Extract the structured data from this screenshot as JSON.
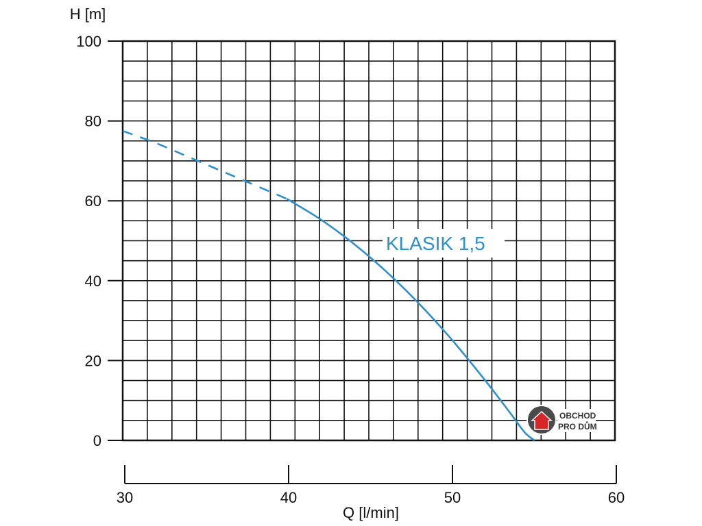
{
  "chart_data": {
    "type": "line",
    "ylabel": "H [m]",
    "xlabel": "Q [l/min]",
    "ylim": [
      0,
      100
    ],
    "xlim": [
      30,
      60
    ],
    "y_ticks": [
      "100",
      "80",
      "60",
      "40",
      "20",
      "0"
    ],
    "x_ticks": [
      "30",
      "40",
      "50",
      "60"
    ],
    "grid": true,
    "series": [
      {
        "name": "KLASIK 1,5",
        "color": "#2e8fc9",
        "dashed_segment": {
          "x": [
            30.0,
            32.0,
            34.0,
            36.0,
            38.0,
            40.0
          ],
          "y": [
            77.5,
            74.5,
            71.0,
            67.5,
            64.0,
            60.5
          ]
        },
        "solid_segment": {
          "x": [
            40.0,
            42.0,
            44.0,
            46.0,
            48.0,
            50.0,
            52.0,
            53.5,
            54.5,
            55.1
          ],
          "y": [
            60.5,
            55.5,
            49.5,
            42.5,
            34.5,
            25.5,
            15.5,
            7.5,
            2.0,
            0.0
          ]
        }
      }
    ]
  },
  "watermark": {
    "line1": "OBCHOD",
    "line2": "PRO DŮM",
    "icon": "house-icon",
    "icon_color": "#d6262a"
  }
}
